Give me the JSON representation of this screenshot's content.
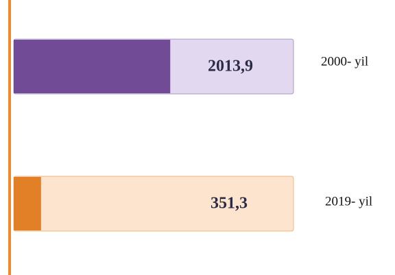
{
  "chart_data": {
    "type": "hbar",
    "categories": [
      "2000- yil",
      "2019- yil"
    ],
    "values": [
      2013.9,
      351.3
    ],
    "value_labels": [
      "2013,9",
      "351,3"
    ],
    "colors": [
      "#6b4391",
      "#e07a1e"
    ],
    "track_colors": [
      "#e2d9f1",
      "#fde4cf"
    ],
    "xlim": [
      0,
      3600
    ]
  }
}
